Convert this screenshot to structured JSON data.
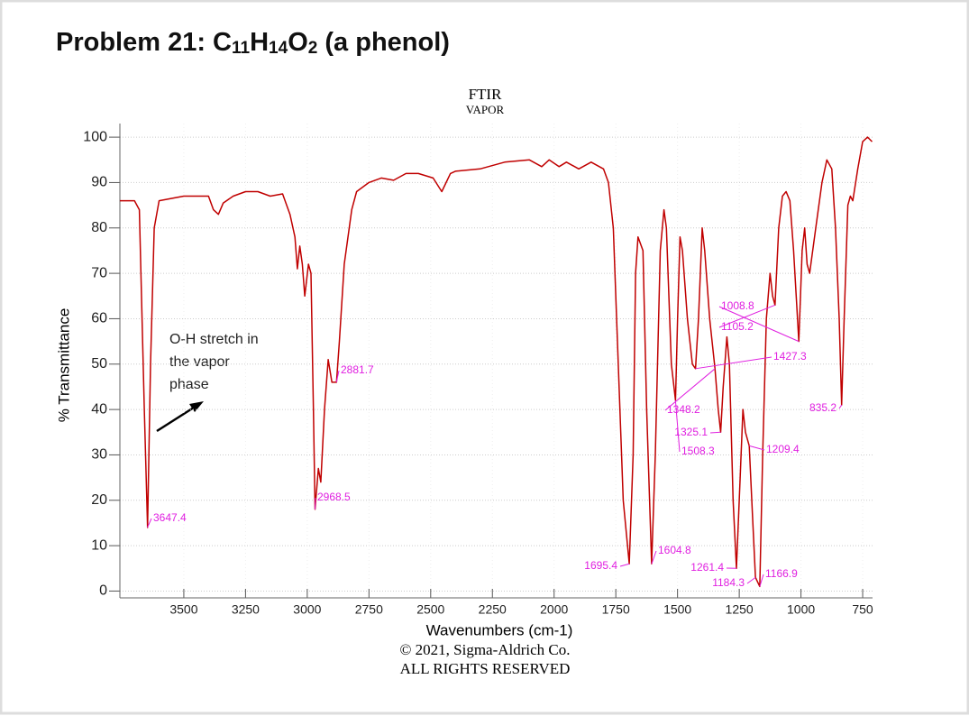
{
  "chart_data": {
    "type": "line",
    "title": "Problem 21: C11H14O2 (a phenol)",
    "subtitle": [
      "FTIR",
      "VAPOR"
    ],
    "x_label": "Wavenumbers (cm-1)",
    "y_label": "% Transmittance",
    "footer": [
      "© 2021, Sigma-Aldrich Co.",
      "ALL RIGHTS RESERVED"
    ],
    "annotation": [
      "O-H stretch in",
      "the vapor",
      "phase"
    ],
    "xlim": [
      3759,
      710
    ],
    "ylim": [
      -1.5,
      103
    ],
    "xticks": [
      3500,
      3250,
      3000,
      2750,
      2500,
      2250,
      2000,
      1750,
      1500,
      1250,
      1000,
      750
    ],
    "yticks": [
      0,
      10,
      20,
      30,
      40,
      50,
      60,
      70,
      80,
      90,
      100
    ],
    "grid": true,
    "series": [
      {
        "color": "#c00000",
        "x": [
          3759,
          3700,
          3680,
          3660,
          3647,
          3635,
          3620,
          3600,
          3500,
          3400,
          3380,
          3360,
          3340,
          3300,
          3250,
          3200,
          3150,
          3100,
          3070,
          3050,
          3040,
          3030,
          3020,
          3010,
          2995,
          2985,
          2975,
          2968.5,
          2955,
          2945,
          2930,
          2915,
          2900,
          2881.7,
          2870,
          2850,
          2820,
          2800,
          2750,
          2700,
          2650,
          2600,
          2550,
          2520,
          2490,
          2455,
          2420,
          2400,
          2300,
          2200,
          2100,
          2050,
          2020,
          1980,
          1950,
          1900,
          1850,
          1800,
          1780,
          1760,
          1740,
          1720,
          1695.4,
          1680,
          1670,
          1660,
          1640,
          1625,
          1604.8,
          1590,
          1570,
          1555,
          1545,
          1525,
          1508.3,
          1500,
          1490,
          1480,
          1460,
          1440,
          1427.3,
          1415,
          1400,
          1390,
          1370,
          1348.2,
          1335,
          1325.1,
          1315,
          1300,
          1290,
          1275,
          1261.4,
          1250,
          1235,
          1225,
          1209.4,
          1195,
          1184.3,
          1166.9,
          1155,
          1140,
          1125,
          1115,
          1105.2,
          1090,
          1075,
          1060,
          1045,
          1030,
          1008.8,
          995,
          985,
          975,
          965,
          940,
          915,
          895,
          875,
          860,
          845,
          835.2,
          825,
          810,
          800,
          790,
          770,
          750,
          730,
          712
        ],
        "values": [
          86,
          86,
          84,
          40,
          14,
          50,
          80,
          86,
          87,
          87,
          84,
          83,
          85.5,
          87,
          88,
          88,
          87,
          87.5,
          83,
          78,
          71,
          76,
          72,
          65,
          72,
          70,
          40,
          18,
          27,
          24,
          40,
          51,
          46,
          46,
          55,
          72,
          84,
          88,
          90,
          91,
          90.5,
          92,
          92,
          91.5,
          91,
          88,
          92,
          92.5,
          93,
          94.5,
          95,
          93.5,
          95,
          93.5,
          94.5,
          93,
          94.5,
          93,
          90,
          80,
          50,
          20,
          6,
          30,
          70,
          78,
          75,
          40,
          6,
          30,
          75,
          84,
          80,
          50,
          42,
          60,
          78,
          75,
          60,
          50,
          49,
          60,
          80,
          75,
          60,
          49,
          40,
          35,
          45,
          56,
          50,
          20,
          5,
          20,
          40,
          35,
          32,
          15,
          3,
          1,
          30,
          60,
          70,
          65,
          63,
          80,
          87,
          88,
          86,
          75,
          55,
          75,
          80,
          72,
          70,
          80,
          90,
          95,
          93,
          80,
          60,
          41,
          60,
          85,
          87,
          86,
          93,
          99,
          100,
          99
        ]
      }
    ],
    "peaks": [
      {
        "x": 3647.4,
        "y": 14
      },
      {
        "x": 2968.5,
        "y": 18
      },
      {
        "x": 2881.7,
        "y": 46
      },
      {
        "x": 1695.4,
        "y": 6
      },
      {
        "x": 1604.8,
        "y": 6
      },
      {
        "x": 1508.3,
        "y": 42
      },
      {
        "x": 1348.2,
        "y": 49
      },
      {
        "x": 1325.1,
        "y": 35
      },
      {
        "x": 1261.4,
        "y": 5
      },
      {
        "x": 1184.3,
        "y": 3
      },
      {
        "x": 1166.9,
        "y": 1
      },
      {
        "x": 1209.4,
        "y": 32
      },
      {
        "x": 835.2,
        "y": 41
      },
      {
        "x": 1008.8,
        "y": 55
      },
      {
        "x": 1105.2,
        "y": 63
      },
      {
        "x": 1427.3,
        "y": 49
      }
    ]
  }
}
